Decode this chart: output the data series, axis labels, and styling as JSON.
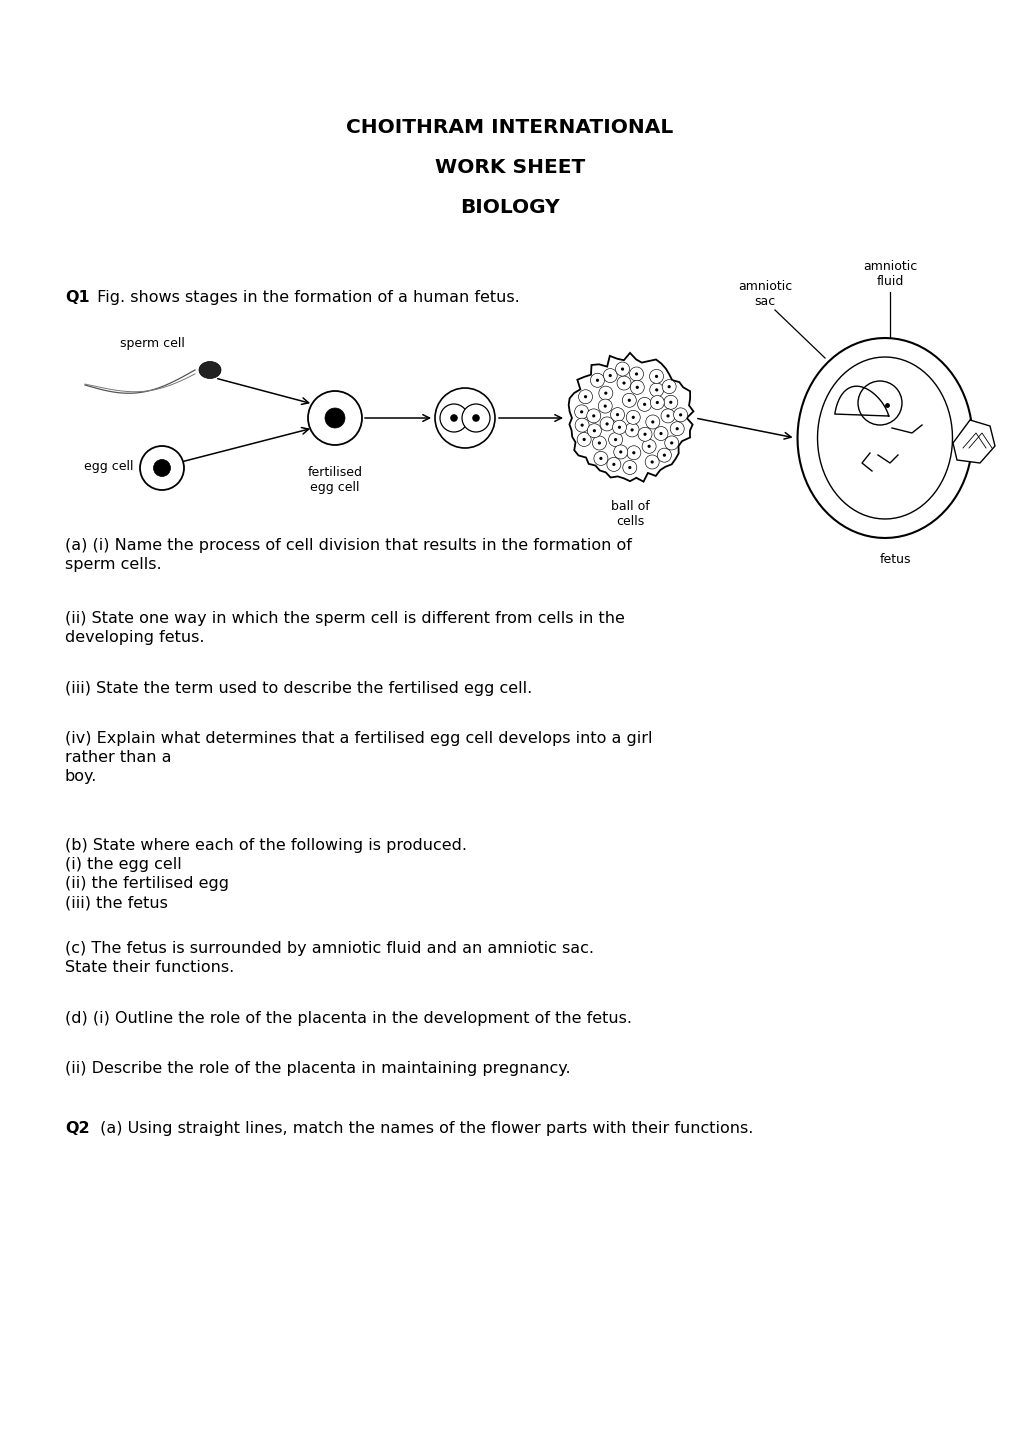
{
  "title_line1": "CHOITHRAM INTERNATIONAL",
  "title_line2": "WORK SHEET",
  "title_line3": "BIOLOGY",
  "q1_label": "Q1",
  "q1_intro": " Fig. shows stages in the formation of a human fetus.",
  "q2_label": "Q2",
  "q2_text": " (a) Using straight lines, match the names of the flower parts with their functions.",
  "questions": [
    "(a) (i) Name the process of cell division that results in the formation of\nsperm cells.",
    "(ii) State one way in which the sperm cell is different from cells in the\ndeveloping fetus.",
    "(iii) State the term used to describe the fertilised egg cell.",
    "(iv) Explain what determines that a fertilised egg cell develops into a girl\nrather than a\nboy.",
    "(b) State where each of the following is produced.\n(i) the egg cell\n(ii) the fertilised egg\n(iii) the fetus",
    "(c) The fetus is surrounded by amniotic fluid and an amniotic sac.\nState their functions.",
    "(d) (i) Outline the role of the placenta in the development of the fetus.",
    "(ii) Describe the role of the placenta in maintaining pregnancy."
  ],
  "bg_color": "#ffffff",
  "text_color": "#000000",
  "title_fontsize": 14.5,
  "body_fontsize": 11.5,
  "label_fontsize": 9.0
}
